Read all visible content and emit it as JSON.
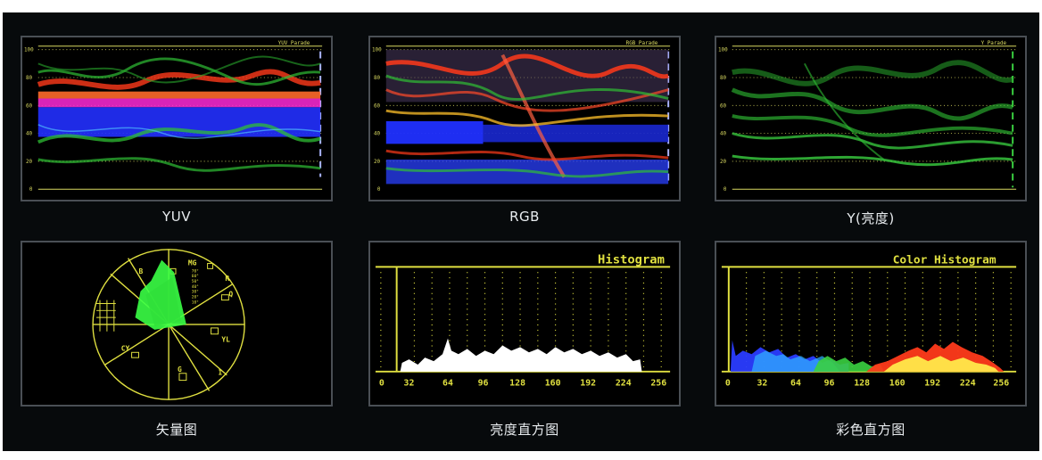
{
  "scopes": [
    {
      "id": "yuv",
      "title": "YUV Parade",
      "caption": "YUV",
      "scale": [
        "100",
        "80",
        "60",
        "40",
        "20",
        "0"
      ]
    },
    {
      "id": "rgb",
      "title": "RGB Parade",
      "caption": "RGB",
      "scale": [
        "100",
        "80",
        "60",
        "40",
        "20",
        "0"
      ]
    },
    {
      "id": "luma",
      "title": "Y Parade",
      "caption": "Y(亮度)",
      "scale": [
        "100",
        "80",
        "60",
        "40",
        "20",
        "0"
      ]
    }
  ],
  "vectorscope": {
    "caption": "矢量图",
    "labels": {
      "mg": "MG",
      "r": "R",
      "yl": "YL",
      "g": "G",
      "cy": "CY",
      "b": "B",
      "i": "I",
      "q": "Q"
    },
    "ring_ticks": [
      "70°",
      "60°",
      "50°",
      "40°",
      "30°",
      "20°",
      "10°"
    ]
  },
  "histogram": {
    "title": "Histogram",
    "caption": "亮度直方图",
    "axis": [
      "0",
      "32",
      "64",
      "96",
      "128",
      "160",
      "192",
      "224",
      "256"
    ]
  },
  "color_histogram": {
    "title": "Color Histogram",
    "caption": "彩色直方图",
    "axis": [
      "0",
      "32",
      "64",
      "96",
      "128",
      "160",
      "192",
      "224",
      "256"
    ]
  },
  "colors": {
    "scope_yellow": "#e8e870",
    "trace_green": "#33d13a",
    "trace_red": "#ff4a2a",
    "trace_blue": "#2a3cff",
    "trace_magenta": "#ff2ad8"
  }
}
